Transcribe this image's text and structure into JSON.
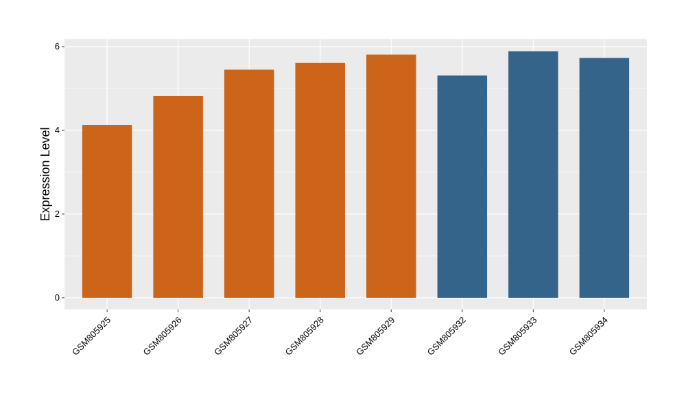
{
  "chart_data": {
    "type": "bar",
    "categories": [
      "GSM805925",
      "GSM805926",
      "GSM805927",
      "GSM805928",
      "GSM805929",
      "GSM805932",
      "GSM805933",
      "GSM805934"
    ],
    "values": [
      4.13,
      4.82,
      5.45,
      5.61,
      5.81,
      5.31,
      5.89,
      5.73
    ],
    "bar_colors": [
      "#CC6419",
      "#CC6419",
      "#CC6419",
      "#CC6419",
      "#CC6419",
      "#35648B",
      "#35648B",
      "#35648B"
    ],
    "xlabel": "",
    "ylabel": "Expression Level",
    "ylim": [
      -0.28,
      6.18
    ],
    "yticks": [
      0,
      2,
      4,
      6
    ],
    "grid": true,
    "panel_background": "#EBEBEB",
    "grid_color": "#FFFFFF",
    "x_tick_rotation": 45
  }
}
